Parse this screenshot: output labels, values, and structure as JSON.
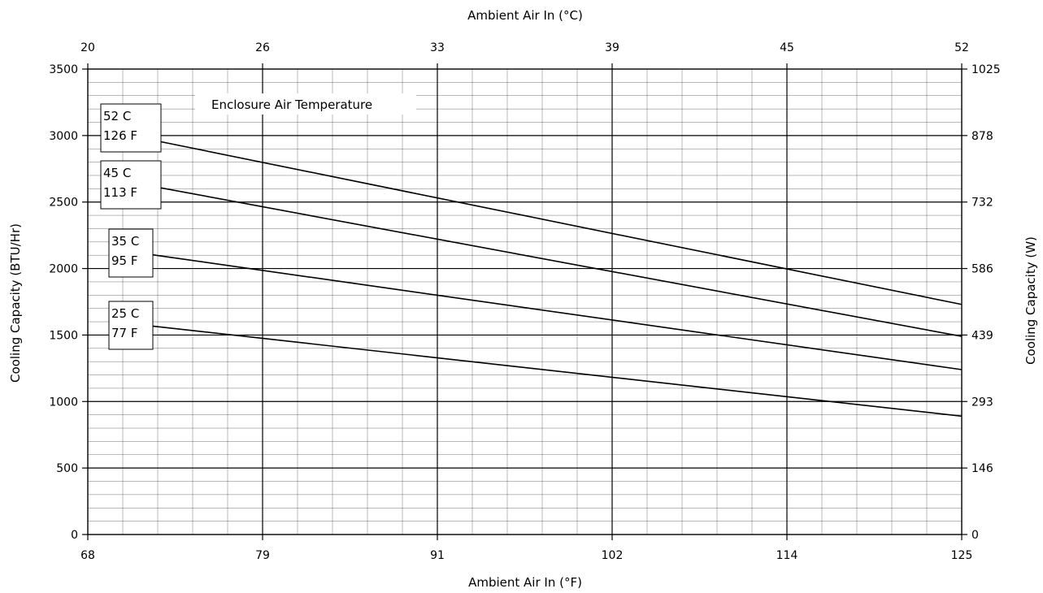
{
  "chart_data": {
    "type": "line",
    "title": "",
    "annotation": "Enclosure Air Temperature",
    "xlabel_bottom": "Ambient Air In (°F)",
    "xlabel_top": "Ambient Air In (°C)",
    "ylabel_left": "Cooling Capacity (BTU/Hr)",
    "ylabel_right": "Cooling Capacity (W)",
    "xlim": [
      68,
      125
    ],
    "ylim": [
      0,
      3500
    ],
    "x_ticks_bottom": [
      "68",
      "79",
      "91",
      "102",
      "114",
      "125"
    ],
    "x_ticks_top": [
      "20",
      "26",
      "33",
      "39",
      "45",
      "52"
    ],
    "y_ticks_left": [
      "0",
      "500",
      "1000",
      "1500",
      "2000",
      "2500",
      "3000",
      "3500"
    ],
    "y_ticks_right": [
      "0",
      "146",
      "293",
      "439",
      "586",
      "732",
      "878",
      "1025"
    ],
    "grid": true,
    "series": [
      {
        "label_c": "52 C",
        "label_f": "126 F",
        "x": [
          71.2,
          125
        ],
        "values": [
          2990,
          1730
        ]
      },
      {
        "label_c": "45 C",
        "label_f": "113 F",
        "x": [
          71.2,
          125
        ],
        "values": [
          2640,
          1490
        ]
      },
      {
        "label_c": "35 C",
        "label_f": "95 F",
        "x": [
          71.2,
          125
        ],
        "values": [
          2120,
          1240
        ]
      },
      {
        "label_c": "25 C",
        "label_f": "77 F",
        "x": [
          71.2,
          125
        ],
        "values": [
          1580,
          890
        ]
      }
    ]
  }
}
